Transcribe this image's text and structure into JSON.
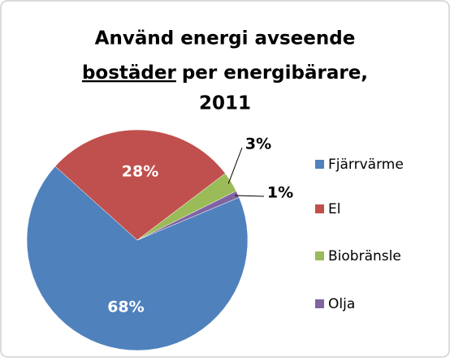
{
  "chart_data": {
    "type": "pie",
    "title": {
      "line1": "Använd energi avseende",
      "underlined": "bostäder",
      "line2_rest": "per energibärare,",
      "line3": "2011"
    },
    "categories": [
      "Fjärrvärme",
      "El",
      "Biobränsle",
      "Olja"
    ],
    "values": [
      68,
      28,
      3,
      1
    ],
    "value_labels": [
      "68%",
      "28%",
      "3%",
      "1%"
    ],
    "colors": [
      "#4f81bd",
      "#c0504d",
      "#9bbb59",
      "#8064a2"
    ],
    "legend": "right"
  }
}
